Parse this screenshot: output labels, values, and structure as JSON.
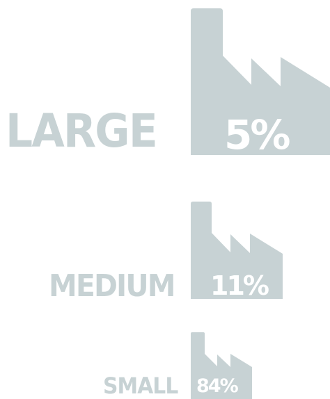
{
  "accent_color": "#c7d2d4",
  "text_on_icon_color": "#ffffff",
  "groups": [
    {
      "label": "LARGE",
      "percent": "5%",
      "icon": "factory-icon"
    },
    {
      "label": "MEDIUM",
      "percent": "11%",
      "icon": "factory-icon"
    },
    {
      "label": "SMALL",
      "percent": "84%",
      "icon": "factory-icon"
    }
  ]
}
